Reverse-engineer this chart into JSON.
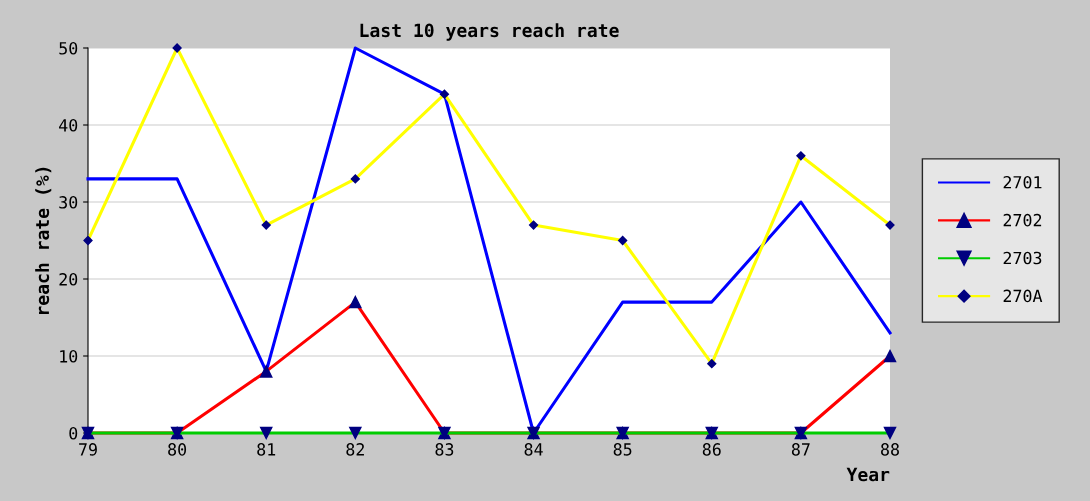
{
  "chart_data": {
    "type": "line",
    "title": "Last 10 years reach rate",
    "xlabel": "Year",
    "ylabel": "reach rate (%)",
    "x": [
      79,
      80,
      81,
      82,
      83,
      84,
      85,
      86,
      87,
      88
    ],
    "xlim": [
      79,
      88
    ],
    "xticks": [
      79,
      80,
      81,
      82,
      83,
      84,
      85,
      86,
      87,
      88
    ],
    "ylim": [
      0,
      50
    ],
    "yticks": [
      0,
      10,
      20,
      30,
      40,
      50
    ],
    "grid": "y",
    "legend": "right",
    "series": [
      {
        "name": "2701",
        "color": "#0000ff",
        "marker": "none",
        "values": [
          33,
          33,
          8,
          50,
          44,
          0,
          17,
          17,
          30,
          13
        ]
      },
      {
        "name": "2702",
        "color": "#ff0000",
        "marker": "triangle",
        "values": [
          0,
          0,
          8,
          17,
          0,
          0,
          0,
          0,
          0,
          10
        ]
      },
      {
        "name": "2703",
        "color": "#00cc00",
        "marker": "triangle_down",
        "values": [
          0,
          0,
          0,
          0,
          0,
          0,
          0,
          0,
          0,
          0
        ]
      },
      {
        "name": "270A",
        "color": "#ffff00",
        "marker": "diamond",
        "values": [
          25,
          50,
          27,
          33,
          44,
          27,
          25,
          9,
          36,
          27
        ]
      }
    ]
  }
}
